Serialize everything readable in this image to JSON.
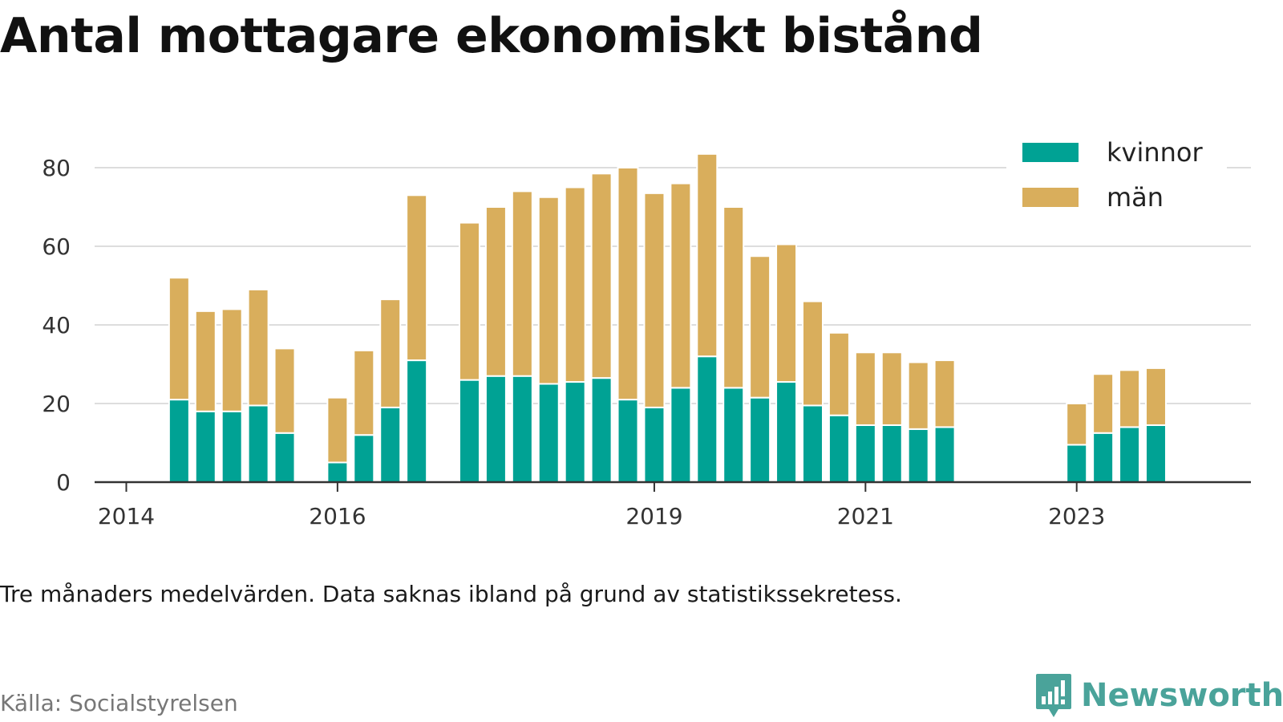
{
  "title": "Antal mottagare ekonomiskt bistånd",
  "note": "Tre månaders medelvärden. Data saknas ibland på grund av statistikssekretess.",
  "source": "Källa: Socialstyrelsen",
  "brand": {
    "name": "Newsworthy",
    "icon": "newsworthy-logo-icon",
    "color": "#4aa39a"
  },
  "chart_data": {
    "type": "bar",
    "stacked": true,
    "x_type": "date",
    "x": [
      "2014-07",
      "2014-10",
      "2015-01",
      "2015-04",
      "2015-07",
      "2016-01",
      "2016-04",
      "2016-07",
      "2016-10",
      "2017-04",
      "2017-07",
      "2017-10",
      "2018-01",
      "2018-04",
      "2018-07",
      "2018-10",
      "2019-01",
      "2019-04",
      "2019-07",
      "2019-10",
      "2020-01",
      "2020-04",
      "2020-07",
      "2020-10",
      "2021-01",
      "2021-04",
      "2021-07",
      "2021-10",
      "2023-01",
      "2023-04",
      "2023-07",
      "2023-10"
    ],
    "series": [
      {
        "name": "kvinnor",
        "color": "#00a294",
        "values": [
          21,
          18,
          18,
          19.5,
          12.5,
          5,
          12,
          19,
          31,
          26,
          27,
          27,
          25,
          25.5,
          26.5,
          21,
          19,
          24,
          32,
          24,
          21.5,
          25.5,
          19.5,
          17,
          14.5,
          14.5,
          13.5,
          14,
          9.5,
          12.5,
          14,
          14.5
        ]
      },
      {
        "name": "män",
        "color": "#d9ae5c",
        "values": [
          31,
          25.5,
          26,
          29.5,
          21.5,
          16.5,
          21.5,
          27.5,
          42,
          40,
          43,
          47,
          47.5,
          49.5,
          52,
          59,
          54.5,
          52,
          51.5,
          46,
          36,
          35,
          26.5,
          21,
          18.5,
          18.5,
          17,
          17,
          10.5,
          15,
          14.5,
          14.5
        ]
      }
    ],
    "x_ticks": [
      "2014",
      "2016",
      "2019",
      "2021",
      "2023"
    ],
    "y_ticks": [
      0,
      20,
      40,
      60,
      80
    ],
    "ylim": [
      0,
      90
    ],
    "xlabel": "",
    "ylabel": "",
    "grid": true,
    "legend_position": "top-right"
  }
}
